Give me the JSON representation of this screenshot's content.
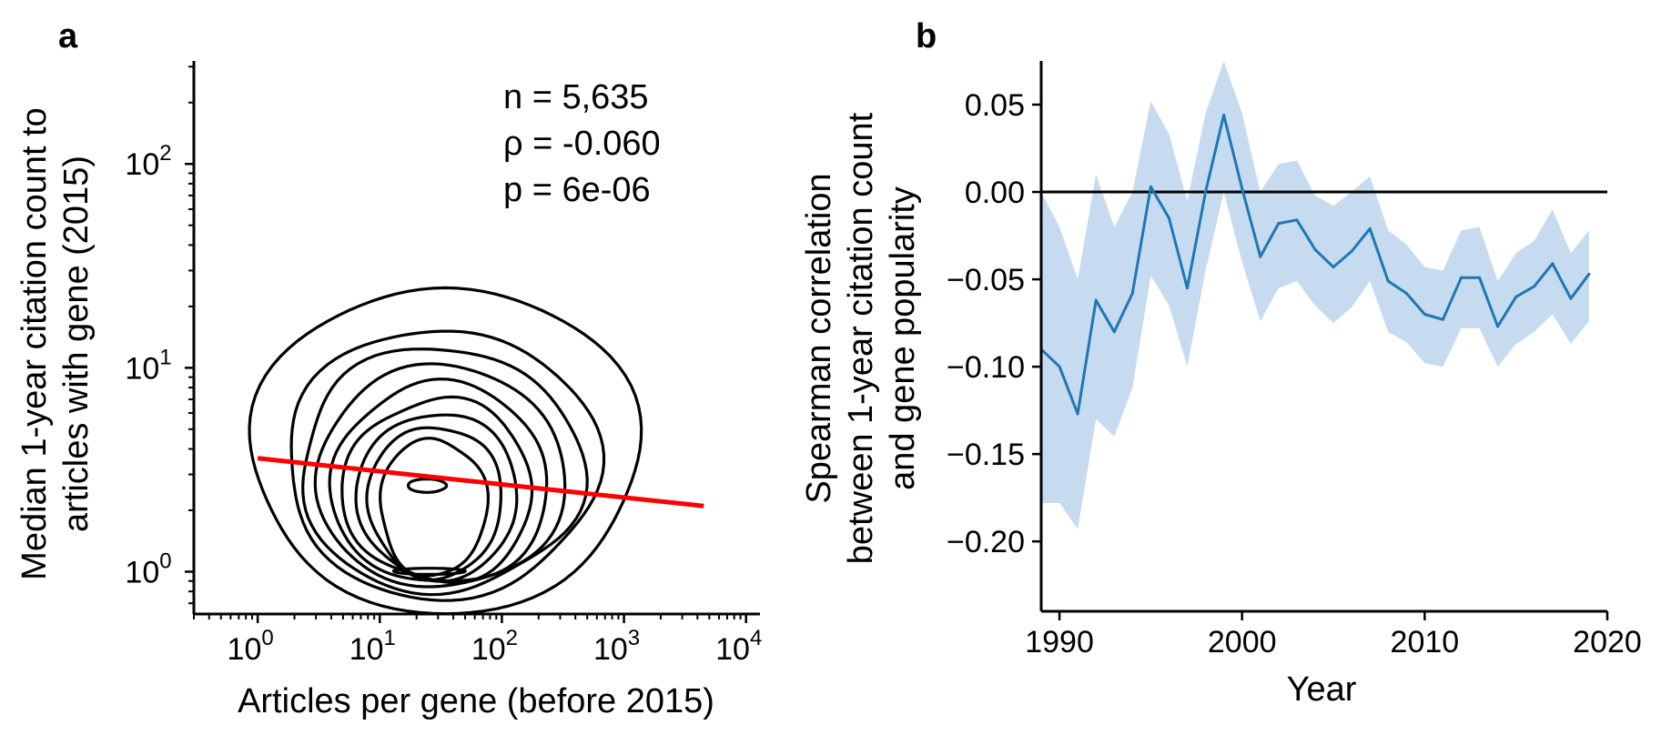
{
  "chart_data": [
    {
      "panel": "a",
      "type": "scatter",
      "subtype": "kde-contour",
      "xlabel": "Articles per gene (before 2015)",
      "ylabel_lines": [
        "Median 1-year citation count to",
        "articles with gene (2015)"
      ],
      "xscale": "log",
      "yscale": "log",
      "xlim": [
        0.3,
        13000
      ],
      "ylim": [
        0.62,
        320
      ],
      "x_ticks": [
        {
          "base": "10",
          "exp": "0",
          "value": 1
        },
        {
          "base": "10",
          "exp": "1",
          "value": 10
        },
        {
          "base": "10",
          "exp": "2",
          "value": 100
        },
        {
          "base": "10",
          "exp": "3",
          "value": 1000
        },
        {
          "base": "10",
          "exp": "4",
          "value": 10000
        }
      ],
      "y_ticks": [
        {
          "base": "10",
          "exp": "0",
          "value": 1
        },
        {
          "base": "10",
          "exp": "1",
          "value": 10
        },
        {
          "base": "10",
          "exp": "2",
          "value": 100
        }
      ],
      "annotations": [
        "n = 5,635",
        "ρ = -0.060",
        "p = 6e-06"
      ],
      "fit_line": {
        "x": [
          1,
          4500
        ],
        "y": [
          3.6,
          2.1
        ],
        "color": "#ff0000"
      },
      "density": {
        "center": [
          28,
          2.6
        ],
        "levels": [
          {
            "x_range": [
              0.88,
              1350
            ],
            "y_range": [
              0.63,
              25
            ]
          },
          {
            "x_range": [
              1.7,
              610
            ],
            "y_range": [
              0.74,
              15.5
            ]
          },
          {
            "x_range": [
              2.2,
              450
            ],
            "y_range": [
              0.79,
              12.5
            ]
          },
          {
            "x_range": [
              3.0,
              330
            ],
            "y_range": [
              0.83,
              10.2
            ]
          },
          {
            "x_range": [
              4.0,
              240
            ],
            "y_range": [
              0.86,
              8.4
            ]
          },
          {
            "x_range": [
              5.0,
              180
            ],
            "y_range": [
              0.89,
              7.0
            ]
          },
          {
            "x_range": [
              6.5,
              135
            ],
            "y_range": [
              0.92,
              6.0
            ]
          },
          {
            "x_range": [
              8.0,
              100
            ],
            "y_range": [
              0.94,
              5.2
            ]
          },
          {
            "x_range": [
              10.0,
              75
            ],
            "y_range": [
              0.96,
              4.5
            ]
          }
        ],
        "extra_lobes": [
          {
            "x_range": [
              13,
              50
            ],
            "y_range": [
              0.97,
              1.04
            ]
          },
          {
            "x_range": [
              17,
              35
            ],
            "y_range": [
              2.45,
              2.85
            ]
          }
        ],
        "color": "#000000"
      }
    },
    {
      "panel": "b",
      "type": "line",
      "xlabel": "Year",
      "ylabel_lines": [
        "Spearman correlation",
        "between 1-year citation count",
        "and gene popularity"
      ],
      "xlim": [
        1989,
        2020
      ],
      "ylim": [
        -0.24,
        0.075
      ],
      "x_ticks": [
        "1990",
        "2000",
        "2010",
        "2020"
      ],
      "y_ticks": [
        "0.05",
        "0.00",
        "−0.05",
        "−0.10",
        "−0.15",
        "−0.20"
      ],
      "reference_line": {
        "y": 0.0,
        "color": "#000000"
      },
      "series": [
        {
          "color": "#1f77b4",
          "band_color": "#c6dbef",
          "x": [
            1989,
            1990,
            1991,
            1992,
            1993,
            1994,
            1995,
            1996,
            1997,
            1998,
            1999,
            2000,
            2001,
            2002,
            2003,
            2004,
            2005,
            2006,
            2007,
            2008,
            2009,
            2010,
            2011,
            2012,
            2013,
            2014,
            2015,
            2016,
            2017,
            2018,
            2019
          ],
          "y": [
            -0.09,
            -0.1,
            -0.127,
            -0.062,
            -0.08,
            -0.058,
            0.003,
            -0.015,
            -0.055,
            0.0,
            0.044,
            0.002,
            -0.037,
            -0.018,
            -0.016,
            -0.033,
            -0.043,
            -0.034,
            -0.021,
            -0.051,
            -0.058,
            -0.07,
            -0.073,
            -0.049,
            -0.049,
            -0.077,
            -0.06,
            -0.054,
            -0.041,
            -0.061,
            -0.047
          ],
          "lower": [
            -0.178,
            -0.178,
            -0.193,
            -0.13,
            -0.14,
            -0.112,
            -0.048,
            -0.065,
            -0.1,
            -0.045,
            0.0,
            -0.04,
            -0.074,
            -0.055,
            -0.051,
            -0.065,
            -0.075,
            -0.066,
            -0.051,
            -0.08,
            -0.086,
            -0.098,
            -0.1,
            -0.078,
            -0.078,
            -0.1,
            -0.087,
            -0.08,
            -0.07,
            -0.087,
            -0.074
          ],
          "upper": [
            0.0,
            -0.02,
            -0.05,
            0.01,
            -0.02,
            0.0,
            0.052,
            0.033,
            -0.005,
            0.045,
            0.09,
            0.045,
            0.0,
            0.016,
            0.018,
            -0.002,
            -0.008,
            0.0,
            0.009,
            -0.022,
            -0.03,
            -0.043,
            -0.045,
            -0.022,
            -0.02,
            -0.051,
            -0.035,
            -0.028,
            -0.01,
            -0.035,
            -0.022
          ]
        }
      ]
    }
  ]
}
